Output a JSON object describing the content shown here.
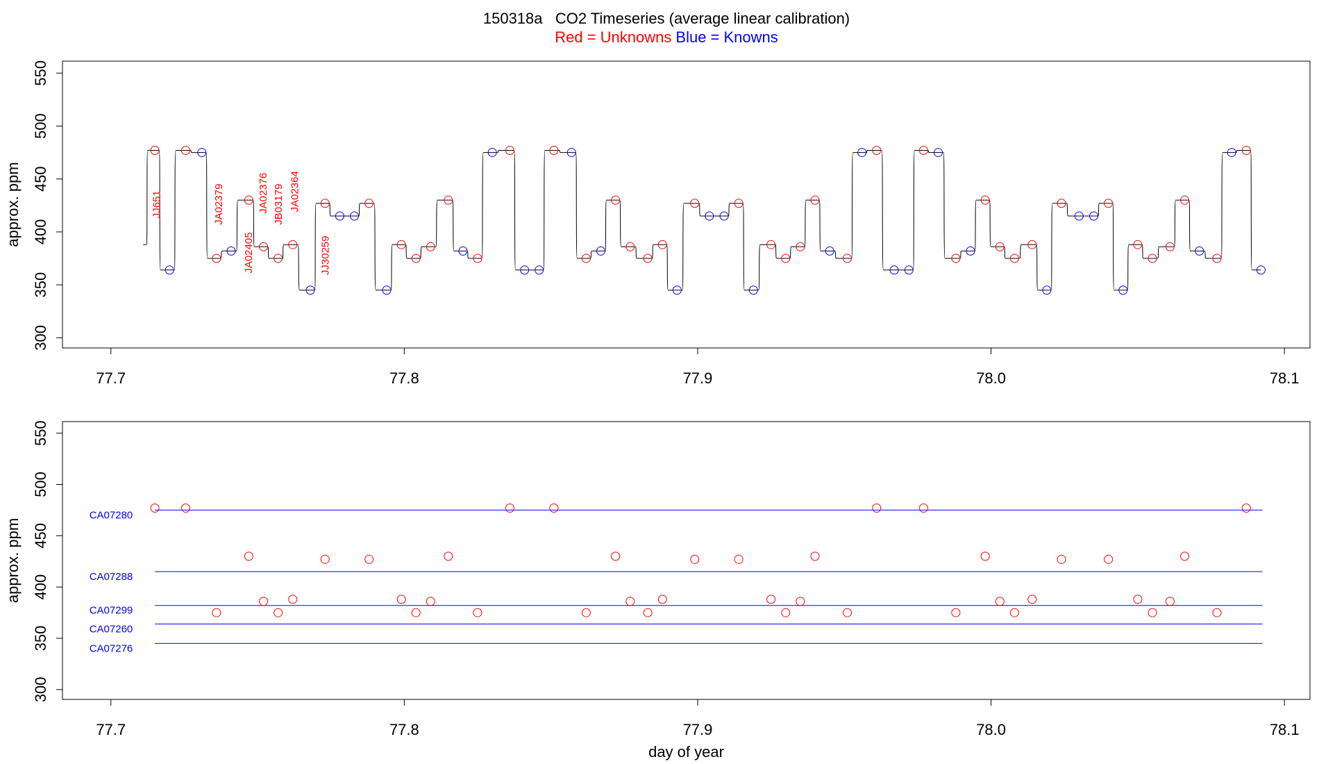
{
  "chart_data": [
    {
      "type": "line",
      "title": "150318a   CO2 Timeseries (average linear calibration)",
      "ylabel": "approx. ppm",
      "xlim": [
        77.6835,
        78.1087
      ],
      "ylim": [
        290.4,
        561.3
      ],
      "xticks": [
        77.7,
        77.8,
        77.9,
        {
          "value": 78,
          "label": "78.0"
        },
        78.1
      ],
      "yticks": [
        300,
        350,
        400,
        450,
        500,
        550
      ],
      "annotations": [
        "JJ651",
        "JA02379",
        "JA02405",
        "JA02376",
        "JB03179",
        "JA02364",
        "JJ30259"
      ],
      "annotation_color": "#ff0000",
      "series": [
        {
          "color": "#000000",
          "x": [
            77.711,
            77.715,
            77.72,
            77.7255,
            77.731,
            77.736,
            77.741,
            77.747,
            77.752,
            77.757,
            77.762,
            77.768,
            77.773,
            77.778,
            77.783,
            77.788,
            77.794,
            77.799,
            77.804,
            77.809,
            77.815,
            77.82,
            77.825,
            77.83,
            77.836,
            77.841,
            77.846,
            77.851,
            77.857,
            77.862,
            77.867,
            77.872,
            77.877,
            77.883,
            77.888,
            77.893,
            77.899,
            77.904,
            77.909,
            77.914,
            77.919,
            77.925,
            77.93,
            77.935,
            77.94,
            77.945,
            77.951,
            77.956,
            77.961,
            77.967,
            77.972,
            77.977,
            77.982,
            77.988,
            77.993,
            77.998,
            78.003,
            78.008,
            78.014,
            78.019,
            78.024,
            78.03,
            78.035,
            78.04,
            78.045,
            78.05,
            78.055,
            78.061,
            78.066,
            78.071,
            78.077,
            78.082,
            78.087,
            78.092
          ],
          "values": [
            388,
            477,
            364,
            477,
            475,
            375,
            382,
            430,
            386,
            375,
            388,
            345,
            427,
            415,
            415,
            427,
            345,
            388,
            375,
            386,
            430,
            382,
            375,
            475,
            477,
            364,
            364,
            477,
            475,
            375,
            382,
            430,
            386,
            375,
            388,
            345,
            427,
            415,
            415,
            427,
            345,
            388,
            375,
            386,
            430,
            382,
            375,
            475,
            477,
            364,
            364,
            477,
            475,
            375,
            382,
            430,
            386,
            375,
            388,
            345,
            427,
            415,
            415,
            427,
            345,
            388,
            375,
            386,
            430,
            382,
            375,
            475,
            477,
            364
          ]
        },
        {
          "name": "Red = Unknowns",
          "color": "#ff0000",
          "x": [
            77.715,
            77.7255,
            77.736,
            77.747,
            77.752,
            77.757,
            77.762,
            77.773,
            77.788,
            77.799,
            77.804,
            77.809,
            77.815,
            77.825,
            77.836,
            77.851,
            77.862,
            77.872,
            77.877,
            77.883,
            77.888,
            77.899,
            77.914,
            77.925,
            77.93,
            77.935,
            77.94,
            77.951,
            77.961,
            77.977,
            77.988,
            77.998,
            78.003,
            78.008,
            78.014,
            78.024,
            78.04,
            78.05,
            78.055,
            78.061,
            78.066,
            78.077,
            78.087
          ],
          "values": [
            477,
            477,
            375,
            430,
            386,
            375,
            388,
            427,
            427,
            388,
            375,
            386,
            430,
            375,
            477,
            477,
            375,
            430,
            386,
            375,
            388,
            427,
            427,
            388,
            375,
            386,
            430,
            375,
            477,
            477,
            375,
            430,
            386,
            375,
            388,
            427,
            427,
            388,
            375,
            386,
            430,
            375,
            477
          ]
        },
        {
          "name": "Blue = Knowns",
          "color": "#0000ff",
          "x": [
            77.72,
            77.731,
            77.741,
            77.768,
            77.778,
            77.783,
            77.794,
            77.82,
            77.83,
            77.841,
            77.846,
            77.857,
            77.867,
            77.893,
            77.904,
            77.909,
            77.919,
            77.945,
            77.956,
            77.967,
            77.972,
            77.982,
            77.993,
            78.019,
            78.03,
            78.035,
            78.045,
            78.071,
            78.082,
            78.092
          ],
          "values": [
            364,
            475,
            382,
            345,
            415,
            415,
            345,
            382,
            475,
            364,
            364,
            475,
            382,
            345,
            415,
            415,
            345,
            382,
            475,
            364,
            364,
            475,
            382,
            345,
            415,
            415,
            345,
            382,
            475,
            364
          ]
        }
      ]
    },
    {
      "type": "scatter",
      "xlabel": "day of year",
      "ylabel": "approx. ppm",
      "xlim": [
        77.6835,
        78.1087
      ],
      "ylim": [
        290.4,
        561.3
      ],
      "xticks": [
        77.7,
        77.8,
        77.9,
        {
          "value": 78,
          "label": "78.0"
        },
        78.1
      ],
      "yticks": [
        300,
        350,
        400,
        450,
        500,
        550
      ],
      "series": [
        {
          "color": "#ff0000",
          "x": [
            77.715,
            77.7255,
            77.736,
            77.747,
            77.752,
            77.757,
            77.762,
            77.773,
            77.788,
            77.799,
            77.804,
            77.809,
            77.815,
            77.825,
            77.836,
            77.851,
            77.862,
            77.872,
            77.877,
            77.883,
            77.888,
            77.899,
            77.914,
            77.925,
            77.93,
            77.935,
            77.94,
            77.951,
            77.961,
            77.977,
            77.988,
            77.998,
            78.003,
            78.008,
            78.014,
            78.024,
            78.04,
            78.05,
            78.055,
            78.061,
            78.066,
            78.077,
            78.087
          ],
          "values": [
            477,
            477,
            375,
            430,
            386,
            375,
            388,
            427,
            427,
            388,
            375,
            386,
            430,
            375,
            477,
            477,
            375,
            430,
            386,
            375,
            388,
            427,
            427,
            388,
            375,
            386,
            430,
            375,
            477,
            477,
            375,
            430,
            386,
            375,
            388,
            427,
            427,
            388,
            375,
            386,
            430,
            375,
            477
          ]
        }
      ],
      "reference_color": "#0000ff",
      "reference_x": [
        77.715,
        78.0925
      ],
      "references": [
        {
          "label": "CA07280",
          "value": 475
        },
        {
          "label": "CA07288",
          "value": 415
        },
        {
          "label": "CA07299",
          "value": 382
        },
        {
          "label": "CA07260",
          "value": 364
        },
        {
          "label": "CA07276",
          "value": 345
        }
      ]
    }
  ]
}
